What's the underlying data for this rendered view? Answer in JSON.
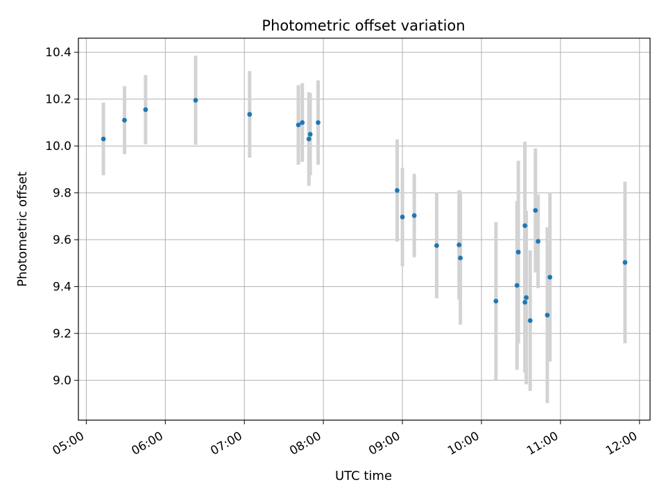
{
  "chart_data": {
    "type": "scatter",
    "title": "Photometric offset variation",
    "xlabel": "UTC time",
    "ylabel": "Photometric offset",
    "grid": true,
    "xlim": [
      "04:54",
      "12:08"
    ],
    "ylim": [
      8.83,
      10.46
    ],
    "x_ticks": [
      "05:00",
      "06:00",
      "07:00",
      "08:00",
      "09:00",
      "10:00",
      "11:00",
      "12:00"
    ],
    "y_ticks": [
      "9.0",
      "9.2",
      "9.4",
      "9.6",
      "9.8",
      "10.0",
      "10.2",
      "10.4"
    ],
    "marker_color": "#1f77b4",
    "errorbar_color": "#d3d3d3",
    "points": [
      {
        "x": "05:13",
        "y": 10.03,
        "err": 0.155
      },
      {
        "x": "05:29",
        "y": 10.11,
        "err": 0.145
      },
      {
        "x": "05:45",
        "y": 10.155,
        "err": 0.148
      },
      {
        "x": "06:23",
        "y": 10.195,
        "err": 0.19
      },
      {
        "x": "07:04",
        "y": 10.135,
        "err": 0.185
      },
      {
        "x": "07:41",
        "y": 10.09,
        "err": 0.17
      },
      {
        "x": "07:44",
        "y": 10.1,
        "err": 0.168
      },
      {
        "x": "07:49",
        "y": 10.03,
        "err": 0.2
      },
      {
        "x": "07:50",
        "y": 10.05,
        "err": 0.175
      },
      {
        "x": "07:56",
        "y": 10.1,
        "err": 0.18
      },
      {
        "x": "08:56",
        "y": 9.81,
        "err": 0.218
      },
      {
        "x": "09:00",
        "y": 9.697,
        "err": 0.21
      },
      {
        "x": "09:09",
        "y": 9.703,
        "err": 0.178
      },
      {
        "x": "09:26",
        "y": 9.575,
        "err": 0.225
      },
      {
        "x": "09:43",
        "y": 9.578,
        "err": 0.233
      },
      {
        "x": "09:44",
        "y": 9.522,
        "err": 0.285
      },
      {
        "x": "10:11",
        "y": 9.338,
        "err": 0.337
      },
      {
        "x": "10:27",
        "y": 9.405,
        "err": 0.36
      },
      {
        "x": "10:28",
        "y": 9.547,
        "err": 0.39
      },
      {
        "x": "10:33",
        "y": 9.66,
        "err": 0.358
      },
      {
        "x": "10:33",
        "y": 9.333,
        "err": 0.3
      },
      {
        "x": "10:34",
        "y": 9.353,
        "err": 0.37
      },
      {
        "x": "10:37",
        "y": 9.255,
        "err": 0.3
      },
      {
        "x": "10:41",
        "y": 9.725,
        "err": 0.265
      },
      {
        "x": "10:43",
        "y": 9.593,
        "err": 0.2
      },
      {
        "x": "10:50",
        "y": 9.278,
        "err": 0.375
      },
      {
        "x": "10:52",
        "y": 9.44,
        "err": 0.36
      },
      {
        "x": "11:49",
        "y": 9.503,
        "err": 0.345
      }
    ]
  }
}
